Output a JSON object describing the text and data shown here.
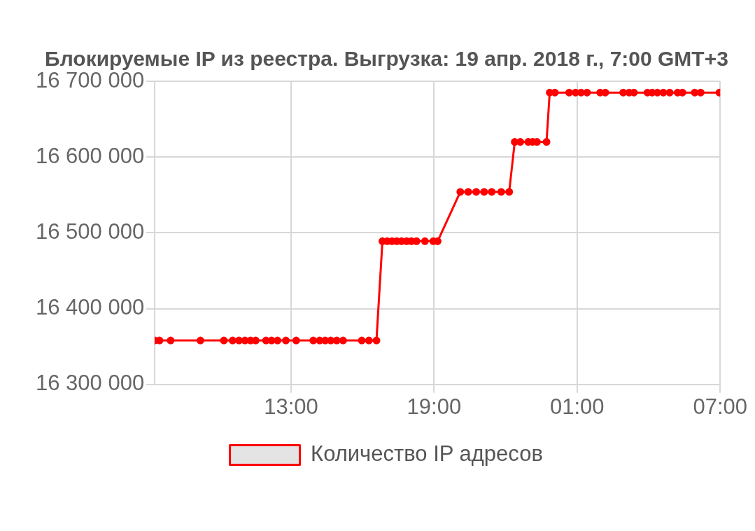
{
  "chart_data": {
    "type": "line",
    "title": "Блокируемые IP из реестра. Выгрузка: 19 апр. 2018 г., 7:00 GMT+3",
    "x": [
      "2018-04-18T07:17",
      "2018-04-18T07:29",
      "2018-04-18T07:57",
      "2018-04-18T09:12",
      "2018-04-18T10:11",
      "2018-04-18T10:33",
      "2018-04-18T10:49",
      "2018-04-18T11:04",
      "2018-04-18T11:18",
      "2018-04-18T11:31",
      "2018-04-18T11:57",
      "2018-04-18T12:11",
      "2018-04-18T12:26",
      "2018-04-18T12:47",
      "2018-04-18T13:13",
      "2018-04-18T13:56",
      "2018-04-18T14:12",
      "2018-04-18T14:26",
      "2018-04-18T14:40",
      "2018-04-18T14:55",
      "2018-04-18T15:11",
      "2018-04-18T15:58",
      "2018-04-18T16:16",
      "2018-04-18T16:35",
      "2018-04-18T16:50",
      "2018-04-18T17:02",
      "2018-04-18T17:14",
      "2018-04-18T17:26",
      "2018-04-18T17:38",
      "2018-04-18T17:51",
      "2018-04-18T18:03",
      "2018-04-18T18:16",
      "2018-04-18T18:37",
      "2018-04-18T18:58",
      "2018-04-18T19:09",
      "2018-04-18T20:06",
      "2018-04-18T20:26",
      "2018-04-18T20:46",
      "2018-04-18T21:06",
      "2018-04-18T21:25",
      "2018-04-18T21:49",
      "2018-04-18T22:09",
      "2018-04-18T22:23",
      "2018-04-18T22:37",
      "2018-04-18T22:57",
      "2018-04-18T23:08",
      "2018-04-18T23:19",
      "2018-04-18T23:43",
      "2018-04-18T23:51",
      "2018-04-19T00:04",
      "2018-04-19T00:40",
      "2018-04-19T00:56",
      "2018-04-19T01:10",
      "2018-04-19T01:25",
      "2018-04-19T01:58",
      "2018-04-19T02:11",
      "2018-04-19T02:56",
      "2018-04-19T03:11",
      "2018-04-19T03:23",
      "2018-04-19T03:57",
      "2018-04-19T04:09",
      "2018-04-19T04:22",
      "2018-04-19T04:37",
      "2018-04-19T04:53",
      "2018-04-19T05:13",
      "2018-04-19T05:25",
      "2018-04-19T05:56",
      "2018-04-19T06:11",
      "2018-04-19T06:58"
    ],
    "series": [
      {
        "name": "Количество IP адресов",
        "color": "#ff0000",
        "values": [
          16358000,
          16358000,
          16358000,
          16358000,
          16358000,
          16358000,
          16358000,
          16358000,
          16358000,
          16358000,
          16358000,
          16358000,
          16358000,
          16358000,
          16358000,
          16358000,
          16358000,
          16358000,
          16358000,
          16358000,
          16358000,
          16358000,
          16358000,
          16358000,
          16489000,
          16489000,
          16489000,
          16489000,
          16489000,
          16489000,
          16489000,
          16489000,
          16489000,
          16489000,
          16489000,
          16554000,
          16554000,
          16554000,
          16554000,
          16554000,
          16554000,
          16554000,
          16620000,
          16620000,
          16620000,
          16620000,
          16620000,
          16620000,
          16685000,
          16685000,
          16685000,
          16685000,
          16685000,
          16685000,
          16685000,
          16685000,
          16685000,
          16685000,
          16685000,
          16685000,
          16685000,
          16685000,
          16685000,
          16685000,
          16685000,
          16685000,
          16685000,
          16685000,
          16685000
        ]
      }
    ],
    "xlim": [
      "2018-04-18T07:17",
      "2018-04-19T07:00"
    ],
    "xticks": [
      {
        "value": "2018-04-18T13:00",
        "label": "13:00"
      },
      {
        "value": "2018-04-18T19:00",
        "label": "19:00"
      },
      {
        "value": "2018-04-19T01:00",
        "label": "01:00"
      },
      {
        "value": "2018-04-19T07:00",
        "label": "07:00"
      }
    ],
    "ylim": [
      16300000,
      16700000
    ],
    "yticks": [
      {
        "value": 16300000,
        "label": "16 300 000"
      },
      {
        "value": 16400000,
        "label": "16 400 000"
      },
      {
        "value": 16500000,
        "label": "16 500 000"
      },
      {
        "value": 16600000,
        "label": "16 600 000"
      },
      {
        "value": 16700000,
        "label": "16 700 000"
      }
    ],
    "grid": true,
    "legend": "bottom",
    "marker": "circle",
    "line_style": "solid"
  }
}
